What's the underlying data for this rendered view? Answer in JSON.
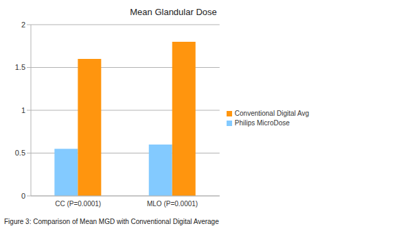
{
  "chart_data": {
    "type": "bar",
    "title": "Mean Glandular Dose",
    "caption": "Figure 3: Comparison of Mean MGD with Conventional Digital Average",
    "categories": [
      "CC (P=0.0001)",
      "MLO (P=0.0001)"
    ],
    "series": [
      {
        "name": "Philips MicroDose",
        "color": "#83caff",
        "values": [
          0.55,
          0.6
        ]
      },
      {
        "name": "Conventional Digital Avg",
        "color": "#ff950e",
        "values": [
          1.6,
          1.8
        ]
      }
    ],
    "ylim": [
      0,
      2
    ],
    "yticks": [
      0,
      0.5,
      1,
      1.5,
      2
    ],
    "grid": true,
    "legend": "right"
  }
}
